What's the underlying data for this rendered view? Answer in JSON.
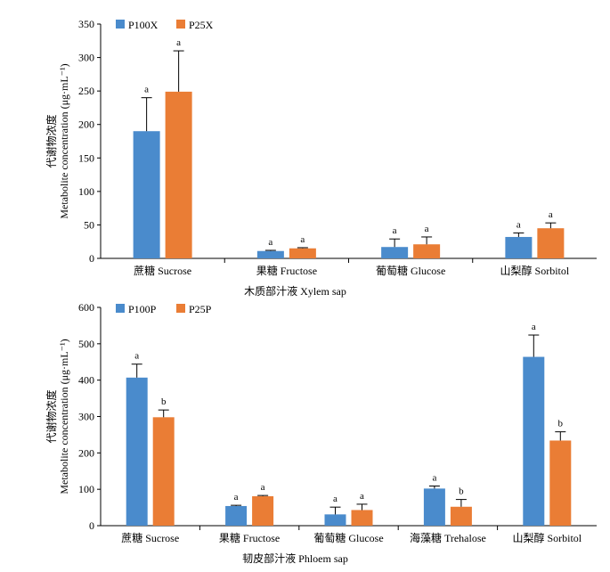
{
  "chart_data": [
    {
      "type": "bar",
      "xlabel": "木质部汁液 Xylem sap",
      "ylabel_cn": "代谢物浓度",
      "ylabel_en": "Metabolite concentration (μg·mL⁻¹)",
      "ylim": [
        0,
        350
      ],
      "yticks": [
        "0",
        "50",
        "100",
        "150",
        "200",
        "250",
        "300",
        "350"
      ],
      "legend_position": "top-left",
      "categories": [
        "蔗糖 Sucrose",
        "果糖 Fructose",
        "葡萄糖 Glucose",
        "山梨醇 Sorbitol"
      ],
      "series": [
        {
          "name": "P100X",
          "color": "#4a8bcc",
          "values": [
            190,
            11,
            17,
            32
          ],
          "errors": [
            50,
            1,
            12,
            6
          ],
          "labels": [
            "a",
            "a",
            "a",
            "a"
          ]
        },
        {
          "name": "P25X",
          "color": "#ea7d35",
          "values": [
            249,
            15,
            21,
            45
          ],
          "errors": [
            61,
            1,
            11,
            8
          ],
          "labels": [
            "a",
            "a",
            "a",
            "a"
          ]
        }
      ]
    },
    {
      "type": "bar",
      "xlabel": "韧皮部汁液 Phloem sap",
      "ylabel_cn": "代谢物浓度",
      "ylabel_en": "Metabolite concentration (μg·mL⁻¹)",
      "ylim": [
        0,
        600
      ],
      "yticks": [
        "0",
        "100",
        "200",
        "300",
        "400",
        "500",
        "600"
      ],
      "legend_position": "top-left",
      "categories": [
        "蔗糖 Sucrose",
        "果糖 Fructose",
        "葡萄糖 Glucose",
        "海藻糖 Trehalose",
        "山梨醇 Sorbitol"
      ],
      "series": [
        {
          "name": "P100P",
          "color": "#4a8bcc",
          "values": [
            407,
            54,
            31,
            102,
            464
          ],
          "errors": [
            37,
            2,
            20,
            7,
            60
          ],
          "labels": [
            "a",
            "a",
            "a",
            "a",
            "a"
          ]
        },
        {
          "name": "P25P",
          "color": "#ea7d35",
          "values": [
            298,
            81,
            43,
            52,
            234
          ],
          "errors": [
            20,
            2,
            16,
            20,
            24
          ],
          "labels": [
            "b",
            "a",
            "a",
            "b",
            "b"
          ]
        }
      ]
    }
  ]
}
